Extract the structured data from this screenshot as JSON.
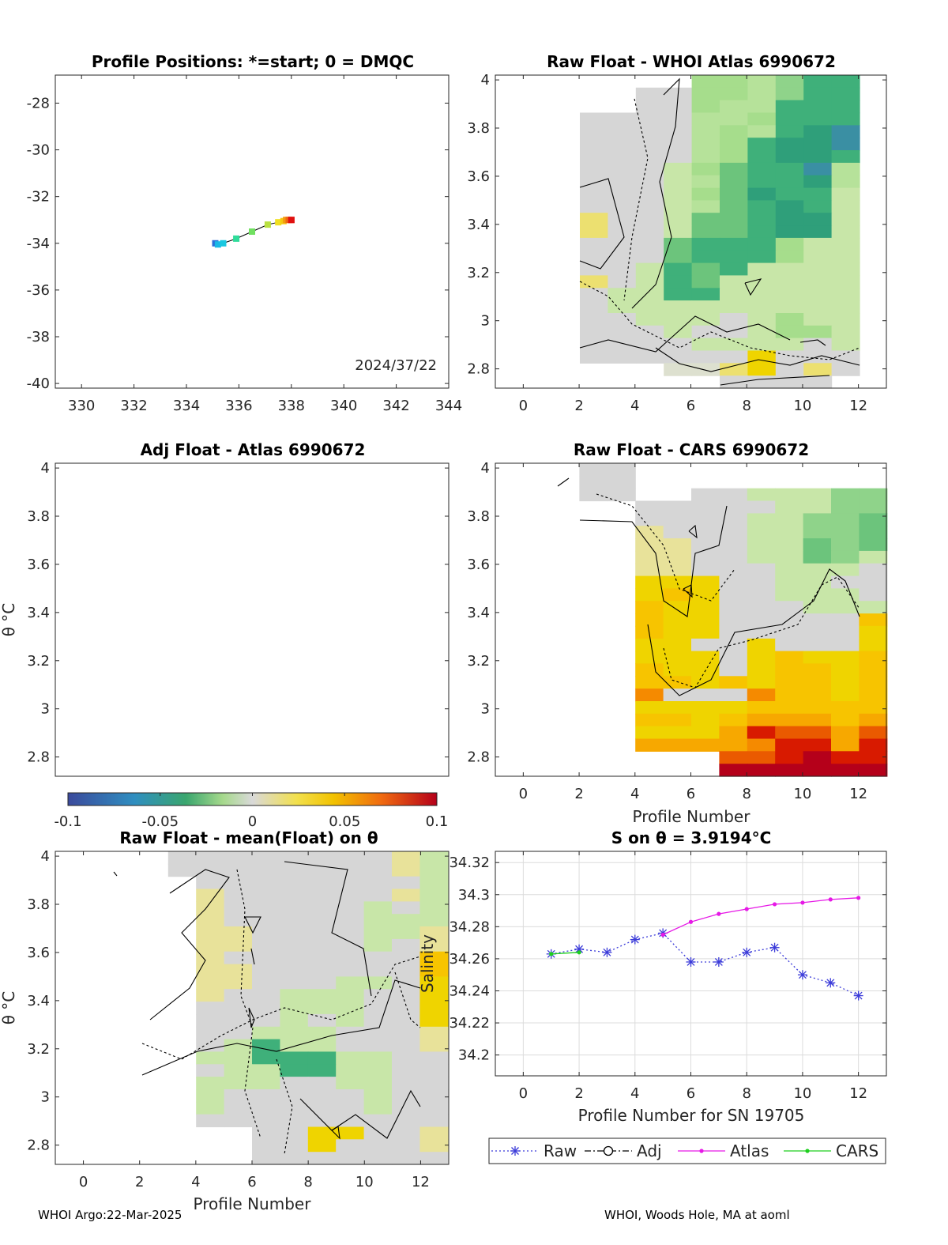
{
  "colors": {
    "raw": "#3b3bd9",
    "adj": "#000000",
    "atlas": "#e619e6",
    "cars": "#1ecf1e",
    "grid": "#dcdcdc"
  },
  "footer": {
    "left": "WHOI Argo:22-Mar-2025",
    "right": "WHOI, Woods Hole, MA at aoml"
  },
  "colorbar": {
    "ticks": [
      "-0.1",
      "-0.05",
      "0",
      "0.05",
      "0.1"
    ],
    "range": [
      -0.1,
      0.1
    ]
  },
  "chart_data": [
    {
      "id": "positions",
      "type": "scatter",
      "title": "Profile Positions: *=start; 0 = DMQC",
      "xlim": [
        329,
        344
      ],
      "ylim": [
        -40.2,
        -26.8
      ],
      "xticks": [
        "330",
        "332",
        "334",
        "336",
        "338",
        "340",
        "342",
        "344"
      ],
      "yticks": [
        "-28",
        "-30",
        "-32",
        "-34",
        "-36",
        "-38",
        "-40"
      ],
      "annotation": "2024/37/22",
      "x": [
        335.1,
        335.2,
        335.4,
        335.9,
        336.5,
        337.1,
        337.5,
        337.7,
        337.8,
        337.9,
        338.0,
        338.0
      ],
      "y": [
        -34.0,
        -34.05,
        -34.0,
        -33.8,
        -33.5,
        -33.2,
        -33.1,
        -33.05,
        -33.0,
        -33.0,
        -33.0,
        -33.0
      ]
    },
    {
      "id": "raw-atlas",
      "type": "heatmap",
      "title": "Raw Float - WHOI Atlas  6990672",
      "xlim": [
        -1,
        13
      ],
      "ylim": [
        2.72,
        4.02
      ],
      "xticks": [
        "0",
        "2",
        "4",
        "6",
        "8",
        "10",
        "12"
      ],
      "yticks": [
        "4",
        "3.8",
        "3.6",
        "3.4",
        "3.2",
        "3",
        "2.8"
      ]
    },
    {
      "id": "adj-atlas",
      "type": "heatmap",
      "title": "Adj Float - Atlas  6990672",
      "xlim": [
        -1,
        13
      ],
      "ylim": [
        2.72,
        4.02
      ],
      "yticks": [
        "4",
        "3.8",
        "3.6",
        "3.4",
        "3.2",
        "3",
        "2.8"
      ],
      "ylabel": "θ °C"
    },
    {
      "id": "raw-cars",
      "type": "heatmap",
      "title": "Raw Float - CARS  6990672",
      "xlim": [
        -1,
        13
      ],
      "ylim": [
        2.72,
        4.02
      ],
      "xticks": [
        "0",
        "2",
        "4",
        "6",
        "8",
        "10",
        "12"
      ],
      "yticks": [
        "4",
        "3.8",
        "3.6",
        "3.4",
        "3.2",
        "3",
        "2.8"
      ],
      "xlabel": "Profile Number"
    },
    {
      "id": "raw-mean",
      "type": "heatmap",
      "title": "Raw Float - mean(Float) on θ",
      "xlim": [
        -1,
        13
      ],
      "ylim": [
        2.72,
        4.02
      ],
      "xticks": [
        "0",
        "2",
        "4",
        "6",
        "8",
        "10",
        "12"
      ],
      "yticks": [
        "4",
        "3.8",
        "3.6",
        "3.4",
        "3.2",
        "3",
        "2.8"
      ],
      "xlabel": "Profile Number",
      "ylabel": "θ °C"
    },
    {
      "id": "salinity",
      "type": "line",
      "title": "S on θ = 3.9194°C",
      "xlim": [
        -1,
        13
      ],
      "ylim": [
        34.187,
        34.327
      ],
      "xticks": [
        "0",
        "2",
        "4",
        "6",
        "8",
        "10",
        "12"
      ],
      "yticks": [
        "34.32",
        "34.3",
        "34.28",
        "34.26",
        "34.24",
        "34.22",
        "34.2"
      ],
      "xlabel": "Profile Number for SN 19705",
      "ylabel": "Salinity",
      "grid": true,
      "legend_position": "bottom-outside",
      "series": [
        {
          "name": "Raw",
          "style": "dotted-star",
          "x": [
            1,
            2,
            3,
            4,
            5,
            6,
            7,
            8,
            9,
            10,
            11,
            12
          ],
          "y": [
            34.263,
            34.266,
            34.264,
            34.272,
            34.276,
            34.258,
            34.258,
            34.264,
            34.267,
            34.25,
            34.245,
            34.237
          ]
        },
        {
          "name": "Adj",
          "style": "dashdot-circle",
          "x": [],
          "y": []
        },
        {
          "name": "Atlas",
          "style": "solid-dot",
          "x": [
            5,
            6,
            7,
            8,
            9,
            10,
            11,
            12
          ],
          "y": [
            34.275,
            34.283,
            34.288,
            34.291,
            34.294,
            34.295,
            34.297,
            34.298
          ]
        },
        {
          "name": "CARS",
          "style": "solid-dot",
          "x": [
            1,
            2
          ],
          "y": [
            34.263,
            34.264
          ]
        }
      ]
    }
  ]
}
